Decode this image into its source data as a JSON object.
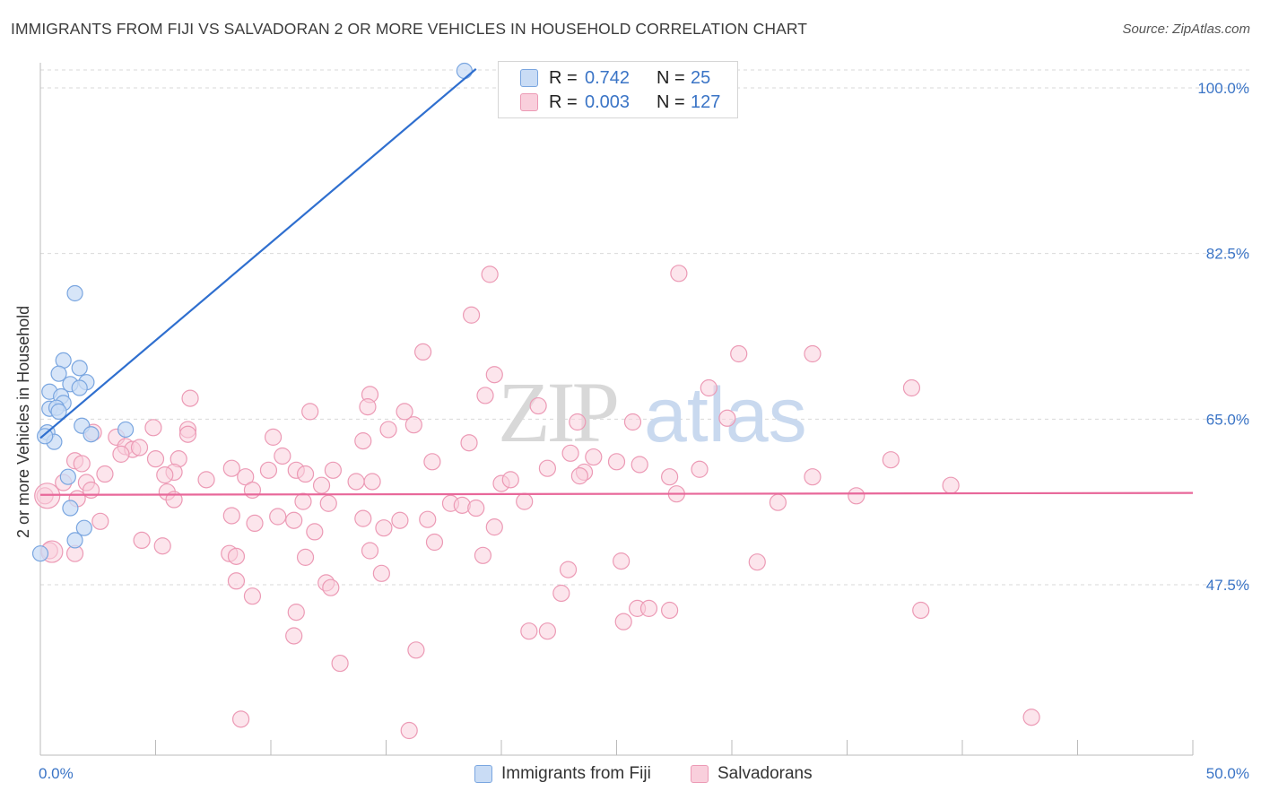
{
  "header": {
    "title": "IMMIGRANTS FROM FIJI VS SALVADORAN 2 OR MORE VEHICLES IN HOUSEHOLD CORRELATION CHART",
    "source": "Source: ZipAtlas.com"
  },
  "legend": {
    "rows": [
      {
        "r_label": "R =",
        "r_value": "0.742",
        "n_label": "N =",
        "n_value": "25"
      },
      {
        "r_label": "R =",
        "r_value": "0.003",
        "n_label": "N =",
        "n_value": "127"
      }
    ]
  },
  "bottom_legend": {
    "items": [
      {
        "label": "Immigrants from Fiji"
      },
      {
        "label": "Salvadorans"
      }
    ]
  },
  "watermark": {
    "part1": "ZIP",
    "part2": "atlas"
  },
  "colors": {
    "fiji_fill": "#c9dcf5",
    "fiji_stroke": "#7aa6e0",
    "fiji_line": "#2f6fcf",
    "salv_fill": "#f9cfdc",
    "salv_stroke": "#ec9ab5",
    "salv_line": "#e8689a",
    "axis_text": "#3a74c6",
    "grid": "#d9d9d9"
  },
  "chart_data": {
    "type": "scatter",
    "title": "IMMIGRANTS FROM FIJI VS SALVADORAN 2 OR MORE VEHICLES IN HOUSEHOLD CORRELATION CHART",
    "xlabel": "",
    "ylabel": "2 or more Vehicles in Household",
    "xlim": [
      0,
      50
    ],
    "ylim": [
      32.5,
      102
    ],
    "x_tick_labels": [
      {
        "value": 0,
        "label": "0.0%"
      },
      {
        "value": 50,
        "label": "50.0%"
      }
    ],
    "y_ticks": [
      {
        "value": 47.5,
        "label": "47.5%"
      },
      {
        "value": 65.0,
        "label": "65.0%"
      },
      {
        "value": 82.5,
        "label": "82.5%"
      },
      {
        "value": 100.0,
        "label": "100.0%"
      }
    ],
    "grid": true,
    "series": [
      {
        "name": "Immigrants from Fiji",
        "r": 0.742,
        "n": 25,
        "trend": {
          "x": [
            0,
            18.9
          ],
          "y": [
            63.0,
            102.0
          ]
        },
        "points": [
          [
            1.5,
            78.3
          ],
          [
            1.0,
            71.2
          ],
          [
            1.7,
            70.4
          ],
          [
            0.8,
            69.8
          ],
          [
            1.3,
            68.7
          ],
          [
            2.0,
            68.9
          ],
          [
            1.7,
            68.3
          ],
          [
            0.4,
            67.9
          ],
          [
            0.9,
            67.4
          ],
          [
            1.0,
            66.7
          ],
          [
            0.4,
            66.1
          ],
          [
            0.7,
            66.2
          ],
          [
            0.8,
            65.8
          ],
          [
            1.8,
            64.3
          ],
          [
            3.7,
            63.9
          ],
          [
            0.3,
            63.6
          ],
          [
            2.2,
            63.4
          ],
          [
            0.6,
            62.6
          ],
          [
            1.2,
            58.9
          ],
          [
            1.3,
            55.6
          ],
          [
            1.9,
            53.5
          ],
          [
            1.5,
            52.2
          ],
          [
            0.0,
            50.8
          ],
          [
            18.4,
            101.8
          ],
          [
            0.2,
            63.2
          ]
        ]
      },
      {
        "name": "Salvadorans",
        "r": 0.003,
        "n": 127,
        "trend": {
          "x": [
            0,
            50
          ],
          "y": [
            57.0,
            57.2
          ]
        },
        "points": [
          [
            19.5,
            80.3
          ],
          [
            27.7,
            80.4
          ],
          [
            18.7,
            76.0
          ],
          [
            16.6,
            72.1
          ],
          [
            30.3,
            71.9
          ],
          [
            33.5,
            71.9
          ],
          [
            19.7,
            69.7
          ],
          [
            29.0,
            68.3
          ],
          [
            37.8,
            68.3
          ],
          [
            14.3,
            67.6
          ],
          [
            19.3,
            67.5
          ],
          [
            6.5,
            67.2
          ],
          [
            14.2,
            66.3
          ],
          [
            21.6,
            66.4
          ],
          [
            11.7,
            65.8
          ],
          [
            15.8,
            65.8
          ],
          [
            29.8,
            65.1
          ],
          [
            23.3,
            64.7
          ],
          [
            25.7,
            64.7
          ],
          [
            16.2,
            64.4
          ],
          [
            4.9,
            64.1
          ],
          [
            6.4,
            63.9
          ],
          [
            15.1,
            63.9
          ],
          [
            2.3,
            63.6
          ],
          [
            3.3,
            63.1
          ],
          [
            10.1,
            63.1
          ],
          [
            14.0,
            62.7
          ],
          [
            18.6,
            62.5
          ],
          [
            3.7,
            62.1
          ],
          [
            4.0,
            61.8
          ],
          [
            4.3,
            62.0
          ],
          [
            3.5,
            61.3
          ],
          [
            23.0,
            61.4
          ],
          [
            5.0,
            60.8
          ],
          [
            6.0,
            60.8
          ],
          [
            10.5,
            61.1
          ],
          [
            24.0,
            61.0
          ],
          [
            17.0,
            60.5
          ],
          [
            25.0,
            60.5
          ],
          [
            26.0,
            60.2
          ],
          [
            36.9,
            60.7
          ],
          [
            1.5,
            60.6
          ],
          [
            1.8,
            60.3
          ],
          [
            8.3,
            59.8
          ],
          [
            11.1,
            59.6
          ],
          [
            9.9,
            59.6
          ],
          [
            12.7,
            59.6
          ],
          [
            5.8,
            59.4
          ],
          [
            22.0,
            59.8
          ],
          [
            23.6,
            59.4
          ],
          [
            2.8,
            59.2
          ],
          [
            5.4,
            59.1
          ],
          [
            8.9,
            58.9
          ],
          [
            23.4,
            59.0
          ],
          [
            27.3,
            58.9
          ],
          [
            33.5,
            58.9
          ],
          [
            11.5,
            59.2
          ],
          [
            1.0,
            58.3
          ],
          [
            2.0,
            58.3
          ],
          [
            13.7,
            58.4
          ],
          [
            14.4,
            58.4
          ],
          [
            20.0,
            58.2
          ],
          [
            20.4,
            58.6
          ],
          [
            12.2,
            58.0
          ],
          [
            39.5,
            58.0
          ],
          [
            9.2,
            57.5
          ],
          [
            5.5,
            57.3
          ],
          [
            27.6,
            57.1
          ],
          [
            35.4,
            56.9
          ],
          [
            1.6,
            56.6
          ],
          [
            0.2,
            56.9
          ],
          [
            5.8,
            56.5
          ],
          [
            11.4,
            56.3
          ],
          [
            12.5,
            56.1
          ],
          [
            17.8,
            56.1
          ],
          [
            18.3,
            55.9
          ],
          [
            21.0,
            56.3
          ],
          [
            32.0,
            56.2
          ],
          [
            18.9,
            55.6
          ],
          [
            8.3,
            54.8
          ],
          [
            10.3,
            54.7
          ],
          [
            11.0,
            54.3
          ],
          [
            14.0,
            54.5
          ],
          [
            15.6,
            54.3
          ],
          [
            16.8,
            54.4
          ],
          [
            2.6,
            54.2
          ],
          [
            9.3,
            54.0
          ],
          [
            11.9,
            53.1
          ],
          [
            14.9,
            53.5
          ],
          [
            19.7,
            53.6
          ],
          [
            4.4,
            52.2
          ],
          [
            5.3,
            51.6
          ],
          [
            17.1,
            52.0
          ],
          [
            14.3,
            51.1
          ],
          [
            8.2,
            50.8
          ],
          [
            1.5,
            50.8
          ],
          [
            0.4,
            51.1
          ],
          [
            8.5,
            50.5
          ],
          [
            11.5,
            50.4
          ],
          [
            19.2,
            50.6
          ],
          [
            25.2,
            50.0
          ],
          [
            31.1,
            49.9
          ],
          [
            22.9,
            49.1
          ],
          [
            14.8,
            48.7
          ],
          [
            8.5,
            47.9
          ],
          [
            12.4,
            47.7
          ],
          [
            12.6,
            47.2
          ],
          [
            9.2,
            46.3
          ],
          [
            22.6,
            46.6
          ],
          [
            11.1,
            44.6
          ],
          [
            25.9,
            45.0
          ],
          [
            26.4,
            45.0
          ],
          [
            27.3,
            44.8
          ],
          [
            38.2,
            44.8
          ],
          [
            25.3,
            43.6
          ],
          [
            21.2,
            42.6
          ],
          [
            22.0,
            42.6
          ],
          [
            11.0,
            42.1
          ],
          [
            16.3,
            40.6
          ],
          [
            13.0,
            39.2
          ],
          [
            8.7,
            33.3
          ],
          [
            16.0,
            32.1
          ],
          [
            43.0,
            33.5
          ],
          [
            28.6,
            59.7
          ],
          [
            2.2,
            57.5
          ],
          [
            7.2,
            58.6
          ],
          [
            6.4,
            63.4
          ]
        ]
      }
    ]
  }
}
